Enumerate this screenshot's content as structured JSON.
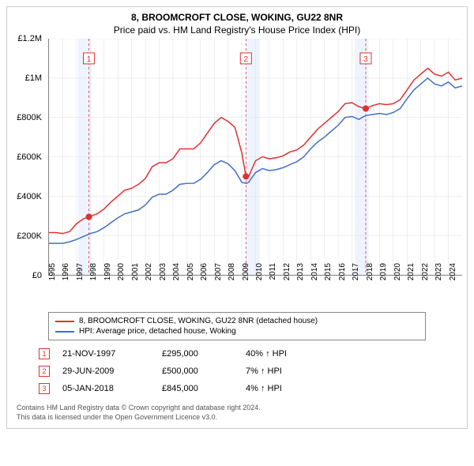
{
  "title_main": "8, BROOMCROFT CLOSE, WOKING, GU22 8NR",
  "title_sub": "Price paid vs. HM Land Registry's House Price Index (HPI)",
  "chart": {
    "type": "line",
    "background_color": "#ffffff",
    "grid_color": "#dddddd",
    "x_years": [
      1995,
      1996,
      1997,
      1998,
      1999,
      2000,
      2001,
      2002,
      2003,
      2004,
      2005,
      2006,
      2007,
      2008,
      2009,
      2010,
      2011,
      2012,
      2013,
      2014,
      2015,
      2016,
      2017,
      2018,
      2019,
      2020,
      2021,
      2022,
      2023,
      2024
    ],
    "x_range": [
      1995,
      2025
    ],
    "shaded_years": [
      1997.1,
      1998.1,
      2009.3,
      2010.3,
      2017.2,
      2018.2
    ],
    "shade_color": "#eef4ff",
    "y_ticks": [
      0,
      200000,
      400000,
      600000,
      800000,
      1000000,
      1200000
    ],
    "y_labels": [
      "£0",
      "£200K",
      "£400K",
      "£600K",
      "£800K",
      "£1M",
      "£1.2M"
    ],
    "y_range": [
      0,
      1200000
    ],
    "series_red": {
      "label": "8, BROOMCROFT CLOSE, WOKING, GU22 8NR (detached house)",
      "color": "#e03030",
      "line_width": 1.5,
      "points": [
        [
          1995.0,
          215000
        ],
        [
          1995.5,
          215000
        ],
        [
          1996.0,
          210000
        ],
        [
          1996.5,
          220000
        ],
        [
          1997.0,
          260000
        ],
        [
          1997.5,
          285000
        ],
        [
          1997.9,
          295000
        ],
        [
          1998.5,
          310000
        ],
        [
          1999.0,
          335000
        ],
        [
          1999.5,
          370000
        ],
        [
          2000.0,
          400000
        ],
        [
          2000.5,
          430000
        ],
        [
          2001.0,
          440000
        ],
        [
          2001.5,
          460000
        ],
        [
          2002.0,
          490000
        ],
        [
          2002.5,
          550000
        ],
        [
          2003.0,
          570000
        ],
        [
          2003.5,
          570000
        ],
        [
          2004.0,
          590000
        ],
        [
          2004.5,
          640000
        ],
        [
          2005.0,
          640000
        ],
        [
          2005.5,
          640000
        ],
        [
          2006.0,
          670000
        ],
        [
          2006.5,
          720000
        ],
        [
          2007.0,
          770000
        ],
        [
          2007.5,
          800000
        ],
        [
          2008.0,
          780000
        ],
        [
          2008.5,
          750000
        ],
        [
          2009.0,
          620000
        ],
        [
          2009.3,
          500000
        ],
        [
          2009.5,
          500000
        ],
        [
          2010.0,
          580000
        ],
        [
          2010.5,
          600000
        ],
        [
          2011.0,
          590000
        ],
        [
          2011.5,
          595000
        ],
        [
          2012.0,
          605000
        ],
        [
          2012.5,
          625000
        ],
        [
          2013.0,
          635000
        ],
        [
          2013.5,
          660000
        ],
        [
          2014.0,
          700000
        ],
        [
          2014.5,
          740000
        ],
        [
          2015.0,
          770000
        ],
        [
          2015.5,
          800000
        ],
        [
          2016.0,
          830000
        ],
        [
          2016.5,
          870000
        ],
        [
          2017.0,
          875000
        ],
        [
          2017.5,
          855000
        ],
        [
          2018.0,
          845000
        ],
        [
          2018.5,
          860000
        ],
        [
          2019.0,
          870000
        ],
        [
          2019.5,
          865000
        ],
        [
          2020.0,
          870000
        ],
        [
          2020.5,
          890000
        ],
        [
          2021.0,
          940000
        ],
        [
          2021.5,
          990000
        ],
        [
          2022.0,
          1020000
        ],
        [
          2022.5,
          1050000
        ],
        [
          2023.0,
          1020000
        ],
        [
          2023.5,
          1010000
        ],
        [
          2024.0,
          1030000
        ],
        [
          2024.5,
          990000
        ],
        [
          2025.0,
          1000000
        ]
      ]
    },
    "series_blue": {
      "label": "HPI: Average price, detached house, Woking",
      "color": "#4070c0",
      "line_width": 1.5,
      "points": [
        [
          1995.0,
          160000
        ],
        [
          1995.5,
          160000
        ],
        [
          1996.0,
          160000
        ],
        [
          1996.5,
          168000
        ],
        [
          1997.0,
          180000
        ],
        [
          1997.5,
          195000
        ],
        [
          1998.0,
          210000
        ],
        [
          1998.5,
          220000
        ],
        [
          1999.0,
          240000
        ],
        [
          1999.5,
          265000
        ],
        [
          2000.0,
          290000
        ],
        [
          2000.5,
          310000
        ],
        [
          2001.0,
          320000
        ],
        [
          2001.5,
          330000
        ],
        [
          2002.0,
          355000
        ],
        [
          2002.5,
          395000
        ],
        [
          2003.0,
          410000
        ],
        [
          2003.5,
          410000
        ],
        [
          2004.0,
          430000
        ],
        [
          2004.5,
          460000
        ],
        [
          2005.0,
          465000
        ],
        [
          2005.5,
          465000
        ],
        [
          2006.0,
          485000
        ],
        [
          2006.5,
          520000
        ],
        [
          2007.0,
          560000
        ],
        [
          2007.5,
          580000
        ],
        [
          2008.0,
          565000
        ],
        [
          2008.5,
          530000
        ],
        [
          2009.0,
          470000
        ],
        [
          2009.3,
          465000
        ],
        [
          2009.5,
          470000
        ],
        [
          2010.0,
          520000
        ],
        [
          2010.5,
          540000
        ],
        [
          2011.0,
          530000
        ],
        [
          2011.5,
          535000
        ],
        [
          2012.0,
          545000
        ],
        [
          2012.5,
          560000
        ],
        [
          2013.0,
          575000
        ],
        [
          2013.5,
          600000
        ],
        [
          2014.0,
          640000
        ],
        [
          2014.5,
          675000
        ],
        [
          2015.0,
          700000
        ],
        [
          2015.5,
          730000
        ],
        [
          2016.0,
          760000
        ],
        [
          2016.5,
          800000
        ],
        [
          2017.0,
          805000
        ],
        [
          2017.5,
          790000
        ],
        [
          2018.0,
          810000
        ],
        [
          2018.5,
          815000
        ],
        [
          2019.0,
          820000
        ],
        [
          2019.5,
          815000
        ],
        [
          2020.0,
          825000
        ],
        [
          2020.5,
          845000
        ],
        [
          2021.0,
          895000
        ],
        [
          2021.5,
          940000
        ],
        [
          2022.0,
          970000
        ],
        [
          2022.5,
          1000000
        ],
        [
          2023.0,
          970000
        ],
        [
          2023.5,
          960000
        ],
        [
          2024.0,
          980000
        ],
        [
          2024.5,
          950000
        ],
        [
          2025.0,
          960000
        ]
      ]
    },
    "markers": [
      {
        "n": "1",
        "x": 1997.9,
        "y": 295000,
        "color": "#e03030"
      },
      {
        "n": "2",
        "x": 2009.3,
        "y": 500000,
        "color": "#e03030"
      },
      {
        "n": "3",
        "x": 2018.0,
        "y": 845000,
        "color": "#e03030"
      }
    ],
    "marker_line_color": "#e03030",
    "marker_box_border": "#e03030",
    "marker_box_fill": "#ffffff",
    "marker_label_top_offset": 18
  },
  "legend": {
    "items": [
      {
        "color": "#e03030",
        "label": "8, BROOMCROFT CLOSE, WOKING, GU22 8NR (detached house)"
      },
      {
        "color": "#4070c0",
        "label": "HPI: Average price, detached house, Woking"
      }
    ]
  },
  "data_rows": [
    {
      "n": "1",
      "date": "21-NOV-1997",
      "price": "£295,000",
      "pct": "40% ↑ HPI"
    },
    {
      "n": "2",
      "date": "29-JUN-2009",
      "price": "£500,000",
      "pct": "7% ↑ HPI"
    },
    {
      "n": "3",
      "date": "05-JAN-2018",
      "price": "£845,000",
      "pct": "4% ↑ HPI"
    }
  ],
  "data_marker_border": "#e03030",
  "footer_line1": "Contains HM Land Registry data © Crown copyright and database right 2024.",
  "footer_line2": "This data is licensed under the Open Government Licence v3.0."
}
